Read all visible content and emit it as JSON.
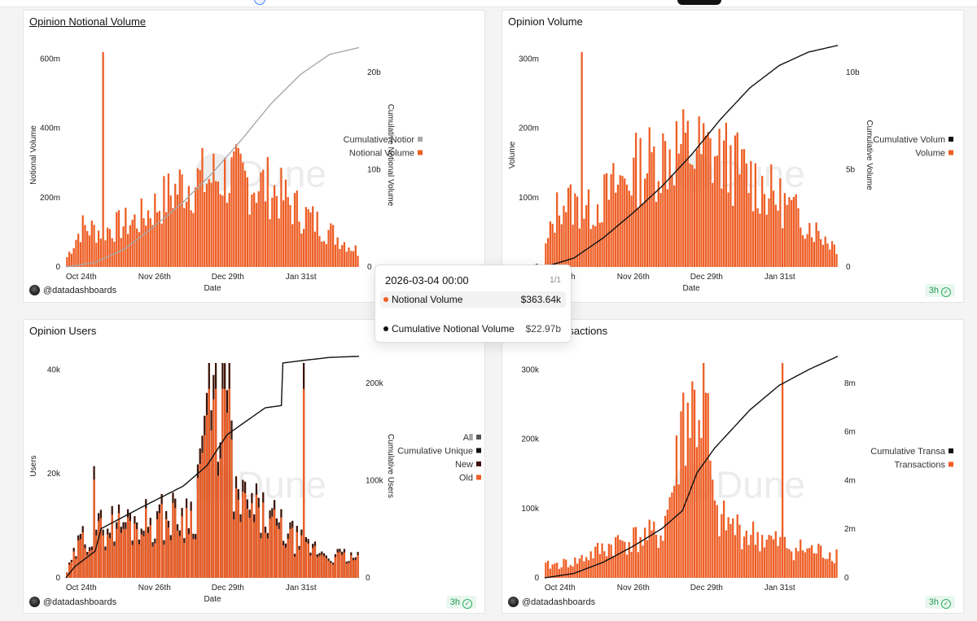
{
  "colors": {
    "bar": "#ee5d24",
    "gray_line": "#a8a8a8",
    "black_line": "#111111",
    "new_bar": "#3b1408",
    "all_legend": "#555555",
    "watermark": "#ececec"
  },
  "chart_data": [
    {
      "type": "bar",
      "title": "Opinion Notional Volume",
      "xlabel": "Date",
      "ylabel": "Notional Volume",
      "y2label": "Cumulative Notional Volume",
      "x_ticks": [
        "Oct 24th",
        "Nov 26th",
        "Dec 29th",
        "Jan 31st"
      ],
      "y_ticks": [
        "0",
        "200m",
        "400m",
        "600m"
      ],
      "y2_ticks": [
        "0",
        "10b",
        "20b"
      ],
      "ylim": [
        0,
        650000000
      ],
      "y2lim": [
        0,
        23500000000
      ],
      "legend_position": "right",
      "series": [
        {
          "name": "Cumulative Notional Volume",
          "legend_label": "Cumulative Notior",
          "kind": "line",
          "color": "#a8a8a8",
          "anchors": [
            [
              0,
              0
            ],
            [
              0.1,
              0.02
            ],
            [
              0.2,
              0.08
            ],
            [
              0.3,
              0.18
            ],
            [
              0.4,
              0.29
            ],
            [
              0.5,
              0.42
            ],
            [
              0.6,
              0.57
            ],
            [
              0.7,
              0.73
            ],
            [
              0.8,
              0.86
            ],
            [
              0.9,
              0.95
            ],
            [
              1,
              0.98
            ]
          ]
        },
        {
          "name": "Notional Volume",
          "kind": "bar",
          "color": "#ee5d24",
          "count": 130,
          "seed": 7,
          "peak": 640000000,
          "spikes": [
            [
              16,
              1.0
            ]
          ],
          "env": [
            [
              0,
              0.05
            ],
            [
              0.05,
              0.2
            ],
            [
              0.12,
              0.18
            ],
            [
              0.25,
              0.24
            ],
            [
              0.4,
              0.42
            ],
            [
              0.55,
              0.46
            ],
            [
              0.7,
              0.4
            ],
            [
              0.8,
              0.28
            ],
            [
              0.9,
              0.18
            ],
            [
              1,
              0.08
            ]
          ]
        }
      ],
      "footer_user": "@datadashboards",
      "badge": ""
    },
    {
      "type": "bar",
      "title": "Opinion Volume",
      "xlabel": "Date",
      "ylabel": "Volume",
      "y2label": "Cumulative Volume",
      "x_ticks": [
        "Oct 24th",
        "Nov 26th",
        "Dec 29th",
        "Jan 31st"
      ],
      "y_ticks": [
        "0",
        "100m",
        "200m",
        "300m"
      ],
      "y2_ticks": [
        "0",
        "5b",
        "10b"
      ],
      "ylim": [
        0,
        330000000
      ],
      "y2lim": [
        0,
        11500000000
      ],
      "legend_position": "right",
      "series": [
        {
          "name": "Cumulative Volume",
          "legend_label": "Cumulative Volum",
          "kind": "line",
          "color": "#111111",
          "anchors": [
            [
              0,
              0
            ],
            [
              0.1,
              0.04
            ],
            [
              0.2,
              0.13
            ],
            [
              0.3,
              0.24
            ],
            [
              0.4,
              0.36
            ],
            [
              0.5,
              0.5
            ],
            [
              0.6,
              0.66
            ],
            [
              0.7,
              0.8
            ],
            [
              0.8,
              0.9
            ],
            [
              0.9,
              0.96
            ],
            [
              1,
              0.99
            ]
          ]
        },
        {
          "name": "Volume",
          "kind": "bar",
          "color": "#ee5d24",
          "count": 130,
          "seed": 13,
          "peak": 330000000,
          "spikes": [
            [
              16,
              1.0
            ]
          ],
          "env": [
            [
              0,
              0.1
            ],
            [
              0.05,
              0.34
            ],
            [
              0.15,
              0.28
            ],
            [
              0.3,
              0.48
            ],
            [
              0.45,
              0.6
            ],
            [
              0.6,
              0.56
            ],
            [
              0.75,
              0.4
            ],
            [
              0.9,
              0.22
            ],
            [
              1,
              0.1
            ]
          ]
        }
      ],
      "footer_user": "@datadashboards",
      "badge": "3h"
    },
    {
      "type": "bar",
      "title": "Opinion Users",
      "xlabel": "Date",
      "ylabel": "Users",
      "y2label": "Cumulative Users",
      "x_ticks": [
        "Oct 24th",
        "Nov 26th",
        "Dec 29th",
        "Jan 31st"
      ],
      "y_ticks": [
        "0",
        "20k",
        "40k"
      ],
      "y2_ticks": [
        "0",
        "100k",
        "200k"
      ],
      "ylim": [
        0,
        54000
      ],
      "y2lim": [
        0,
        240000
      ],
      "legend_position": "right",
      "series": [
        {
          "name": "All",
          "kind": "legend-only",
          "color": "#555555"
        },
        {
          "name": "Cumulative Unique Users",
          "legend_label": "Cumulative Unique",
          "kind": "line",
          "color": "#111111",
          "anchors": [
            [
              0,
              0
            ],
            [
              0.03,
              0.05
            ],
            [
              0.1,
              0.12
            ],
            [
              0.12,
              0.22
            ],
            [
              0.25,
              0.31
            ],
            [
              0.4,
              0.41
            ],
            [
              0.48,
              0.5
            ],
            [
              0.55,
              0.64
            ],
            [
              0.68,
              0.76
            ],
            [
              0.735,
              0.77
            ],
            [
              0.74,
              0.96
            ],
            [
              0.8,
              0.97
            ],
            [
              0.9,
              0.985
            ],
            [
              1,
              0.99
            ]
          ]
        },
        {
          "name": "New",
          "kind": "bar",
          "color": "#3b1408",
          "count": 130,
          "seed": 29,
          "peak": 52000,
          "spikes": [
            [
              12,
              0.52
            ],
            [
              105,
              1.0
            ]
          ],
          "env": [
            [
              0,
              0.03
            ],
            [
              0.05,
              0.2
            ],
            [
              0.15,
              0.28
            ],
            [
              0.3,
              0.3
            ],
            [
              0.44,
              0.34
            ],
            [
              0.47,
              0.82
            ],
            [
              0.55,
              0.95
            ],
            [
              0.58,
              0.4
            ],
            [
              0.7,
              0.3
            ],
            [
              0.8,
              0.18
            ],
            [
              0.9,
              0.12
            ],
            [
              1,
              0.1
            ]
          ]
        },
        {
          "name": "Old",
          "kind": "bar",
          "color": "#ee5d24",
          "ratio": 0.88
        }
      ],
      "footer_user": "@datadashboards",
      "badge": "3h"
    },
    {
      "type": "bar",
      "title": "Opinion Transactions",
      "xlabel": "",
      "ylabel": "",
      "y2label": "",
      "x_ticks": [
        "Oct 24th",
        "Nov 26th",
        "Dec 29th",
        "Jan 31st"
      ],
      "y_ticks": [
        "0",
        "100k",
        "200k",
        "300k"
      ],
      "y2_ticks": [
        "0",
        "2m",
        "4m",
        "6m",
        "8m"
      ],
      "ylim": [
        0,
        320000
      ],
      "y2lim": [
        0,
        9300000
      ],
      "legend_position": "right",
      "series": [
        {
          "name": "Cumulative Transactions",
          "legend_label": "Cumulative Transa",
          "kind": "line",
          "color": "#111111",
          "anchors": [
            [
              0,
              0
            ],
            [
              0.1,
              0.02
            ],
            [
              0.2,
              0.07
            ],
            [
              0.3,
              0.14
            ],
            [
              0.4,
              0.22
            ],
            [
              0.47,
              0.3
            ],
            [
              0.52,
              0.47
            ],
            [
              0.58,
              0.58
            ],
            [
              0.7,
              0.75
            ],
            [
              0.8,
              0.86
            ],
            [
              0.9,
              0.93
            ],
            [
              1,
              0.99
            ]
          ]
        },
        {
          "name": "Transactions",
          "kind": "bar",
          "color": "#ee5d24",
          "count": 130,
          "seed": 41,
          "peak": 320000,
          "spikes": [
            [
              105,
              1.0
            ]
          ],
          "env": [
            [
              0,
              0.06
            ],
            [
              0.1,
              0.08
            ],
            [
              0.25,
              0.18
            ],
            [
              0.4,
              0.22
            ],
            [
              0.45,
              0.55
            ],
            [
              0.47,
              0.82
            ],
            [
              0.55,
              0.86
            ],
            [
              0.58,
              0.3
            ],
            [
              0.7,
              0.22
            ],
            [
              0.85,
              0.15
            ],
            [
              1,
              0.12
            ]
          ]
        }
      ],
      "footer_user": "@datadashboards",
      "badge": "3h"
    }
  ],
  "tooltip": {
    "date": "2026-03-04 00:00",
    "page": "1/1",
    "rows": [
      {
        "label": "Notional Volume",
        "value": "$363.64k",
        "color": "#ee5d24"
      },
      {
        "label": "Cumulative Notional Volume",
        "value": "$22.97b",
        "color": "#111111"
      }
    ]
  },
  "watermark": "Dune"
}
